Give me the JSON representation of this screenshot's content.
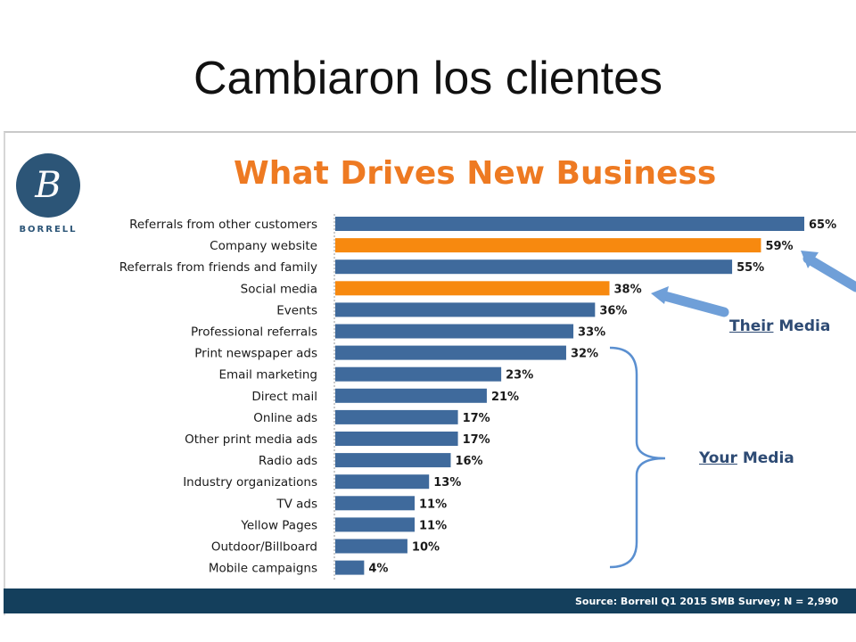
{
  "slide": {
    "title": "Cambiaron los clientes"
  },
  "brand": {
    "logo_text": "BORRELL",
    "logo_mark": "B"
  },
  "chart_data": {
    "type": "bar",
    "orientation": "horizontal",
    "title": "What Drives New Business",
    "categories": [
      "Referrals from other customers",
      "Company website",
      "Referrals from friends and family",
      "Social media",
      "Events",
      "Professional referrals",
      "Print newspaper ads",
      "Email marketing",
      "Direct mail",
      "Online ads",
      "Other print media ads",
      "Radio ads",
      "Industry organizations",
      "TV ads",
      "Yellow Pages",
      "Outdoor/Billboard",
      "Mobile campaigns"
    ],
    "values": [
      65,
      59,
      55,
      38,
      36,
      33,
      32,
      23,
      21,
      17,
      17,
      16,
      13,
      11,
      11,
      10,
      4
    ],
    "value_labels": [
      "65%",
      "59%",
      "55%",
      "38%",
      "36%",
      "33%",
      "32%",
      "23%",
      "21%",
      "17%",
      "17%",
      "16%",
      "13%",
      "11%",
      "11%",
      "10%",
      "4%"
    ],
    "unit": "%",
    "highlighted": [
      "Company website",
      "Social media"
    ],
    "xlim": [
      0,
      65
    ],
    "colors": {
      "default": "#3f6a9c",
      "highlight": "#f7890f"
    }
  },
  "annotations": {
    "their_media": {
      "underlined": "Their",
      "rest": " Media"
    },
    "your_media": {
      "underlined": "Your",
      "rest": " Media"
    }
  },
  "source": "Source:  Borrell Q1 2015 SMB Survey; N = 2,990",
  "colors": {
    "title_orange": "#ee7a22",
    "navy": "#143f5c",
    "annotation": "#2e4b74",
    "arrow": "#6f9fd8"
  }
}
